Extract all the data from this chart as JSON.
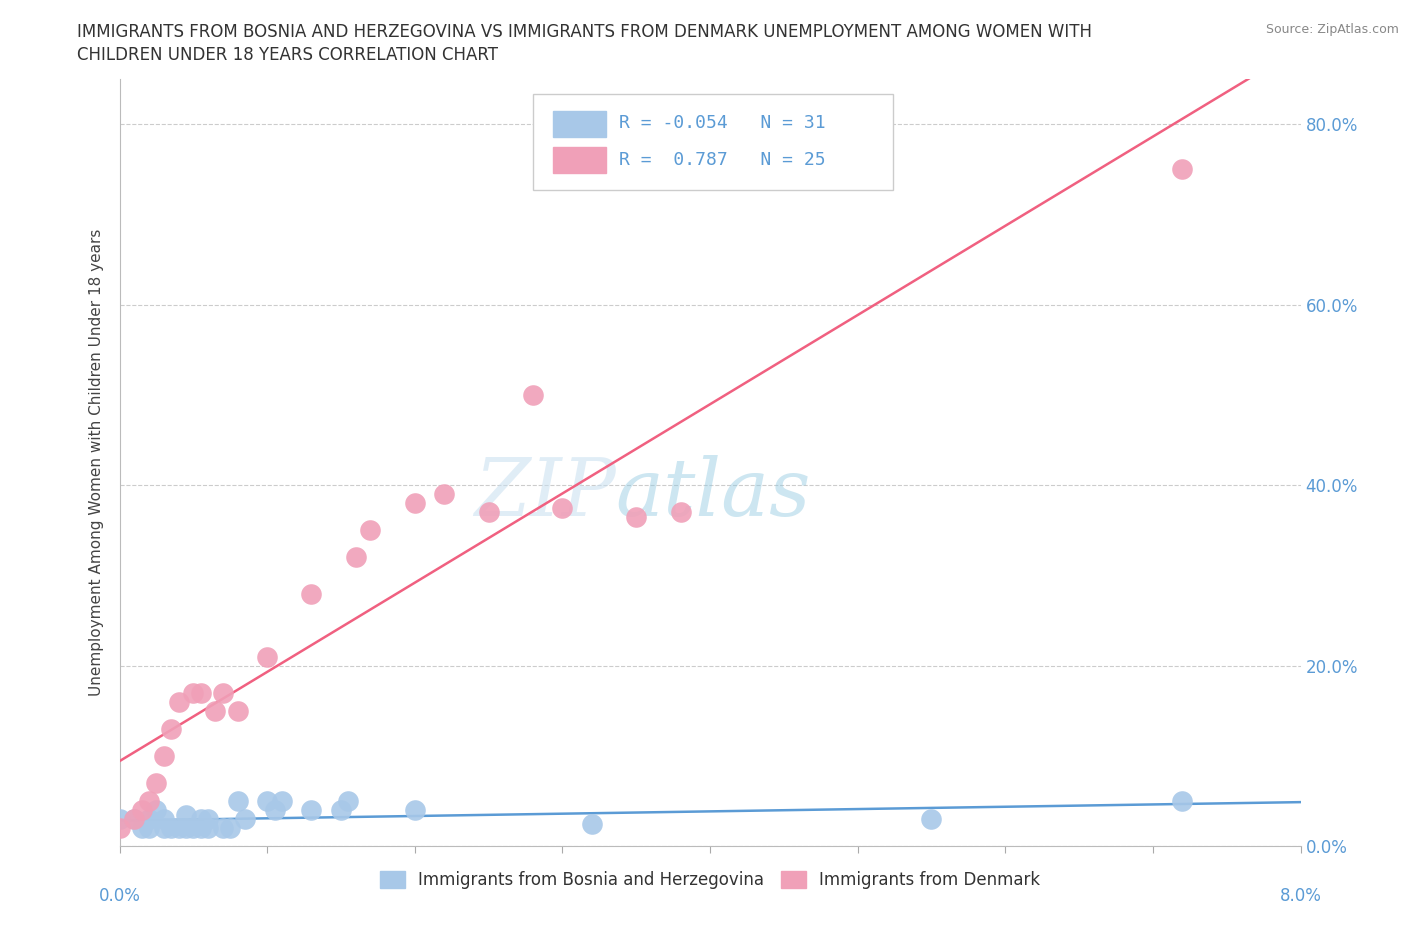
{
  "title_line1": "IMMIGRANTS FROM BOSNIA AND HERZEGOVINA VS IMMIGRANTS FROM DENMARK UNEMPLOYMENT AMONG WOMEN WITH",
  "title_line2": "CHILDREN UNDER 18 YEARS CORRELATION CHART",
  "source": "Source: ZipAtlas.com",
  "ylabel": "Unemployment Among Women with Children Under 18 years",
  "ytick_vals": [
    0.0,
    20.0,
    40.0,
    60.0,
    80.0
  ],
  "legend_label1": "Immigrants from Bosnia and Herzegovina",
  "legend_label2": "Immigrants from Denmark",
  "r1": "-0.054",
  "n1": "31",
  "r2": "0.787",
  "n2": "25",
  "color_bosnia": "#a8c8e8",
  "color_denmark": "#f0a0b8",
  "color_line1": "#5b9bd5",
  "color_line2": "#f06080",
  "color_ytick": "#5b9bd5",
  "color_xtick": "#5b9bd5",
  "bosnia_x": [
    0.0,
    0.1,
    0.15,
    0.2,
    0.2,
    0.25,
    0.3,
    0.3,
    0.35,
    0.4,
    0.45,
    0.45,
    0.5,
    0.55,
    0.55,
    0.6,
    0.6,
    0.7,
    0.75,
    0.8,
    0.85,
    1.0,
    1.05,
    1.1,
    1.3,
    1.5,
    1.55,
    2.0,
    3.2,
    5.5,
    7.2
  ],
  "bosnia_y": [
    3.0,
    3.0,
    2.0,
    2.0,
    3.0,
    4.0,
    2.0,
    3.0,
    2.0,
    2.0,
    2.0,
    3.5,
    2.0,
    2.0,
    3.0,
    2.0,
    3.0,
    2.0,
    2.0,
    5.0,
    3.0,
    5.0,
    4.0,
    5.0,
    4.0,
    4.0,
    5.0,
    4.0,
    2.5,
    3.0,
    5.0
  ],
  "denmark_x": [
    0.0,
    0.1,
    0.15,
    0.2,
    0.25,
    0.3,
    0.35,
    0.4,
    0.5,
    0.55,
    0.65,
    0.7,
    0.8,
    1.0,
    1.3,
    1.6,
    1.7,
    2.0,
    2.2,
    2.5,
    2.8,
    3.0,
    3.5,
    3.8,
    7.2
  ],
  "denmark_y": [
    2.0,
    3.0,
    4.0,
    5.0,
    7.0,
    10.0,
    13.0,
    16.0,
    17.0,
    17.0,
    15.0,
    17.0,
    15.0,
    21.0,
    28.0,
    32.0,
    35.0,
    38.0,
    39.0,
    37.0,
    50.0,
    37.5,
    36.5,
    37.0,
    75.0
  ],
  "xlim": [
    0,
    8
  ],
  "ylim": [
    0,
    85
  ],
  "xmin_label": "0.0%",
  "xmax_label": "8.0%"
}
